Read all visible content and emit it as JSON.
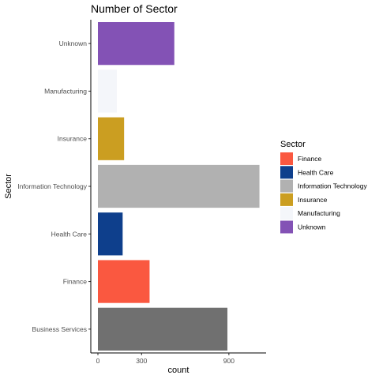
{
  "chart_data": {
    "type": "bar",
    "orientation": "horizontal",
    "title": "Number of Sector",
    "xlabel": "count",
    "ylabel": "Sector",
    "xlim": [
      0,
      1100
    ],
    "x_ticks": [
      0,
      300,
      900
    ],
    "categories": [
      "Business Services",
      "Finance",
      "Health Care",
      "Information Technology",
      "Insurance",
      "Manufacturing",
      "Unknown"
    ],
    "values": [
      890,
      355,
      170,
      1110,
      180,
      130,
      525
    ],
    "bar_colors": [
      "#707070",
      "#fa5840",
      "#0e3f8c",
      "#b1b1b1",
      "#cb9e21",
      "#f4f6fa",
      "#8352b5"
    ],
    "grid": false,
    "legend": {
      "title": "Sector",
      "position": "right",
      "items": [
        {
          "label": "Finance",
          "color": "#fa5840"
        },
        {
          "label": "Health Care",
          "color": "#0e3f8c"
        },
        {
          "label": "Information Technology",
          "color": "#b1b1b1"
        },
        {
          "label": "Insurance",
          "color": "#cb9e21"
        },
        {
          "label": "Manufacturing",
          "color": "#f4f6fa"
        },
        {
          "label": "Unknown",
          "color": "#8352b5"
        }
      ]
    }
  }
}
